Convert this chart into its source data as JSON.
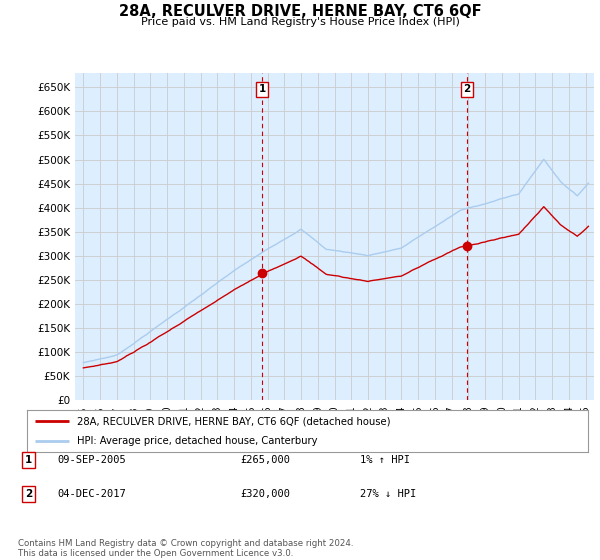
{
  "title": "28A, RECULVER DRIVE, HERNE BAY, CT6 6QF",
  "subtitle": "Price paid vs. HM Land Registry's House Price Index (HPI)",
  "ylabel_ticks": [
    "£0",
    "£50K",
    "£100K",
    "£150K",
    "£200K",
    "£250K",
    "£300K",
    "£350K",
    "£400K",
    "£450K",
    "£500K",
    "£550K",
    "£600K",
    "£650K"
  ],
  "ytick_values": [
    0,
    50000,
    100000,
    150000,
    200000,
    250000,
    300000,
    350000,
    400000,
    450000,
    500000,
    550000,
    600000,
    650000
  ],
  "ylim": [
    0,
    680000
  ],
  "xlim_start": 1994.5,
  "xlim_end": 2025.5,
  "hpi_color": "#aaccee",
  "price_color": "#cc0000",
  "marker_color": "#cc0000",
  "grid_color": "#cccccc",
  "chart_bg": "#ddeeff",
  "background_color": "#ffffff",
  "sale1_x": 2005.69,
  "sale1_y": 265000,
  "sale1_label": "1",
  "sale2_x": 2017.92,
  "sale2_y": 320000,
  "sale2_label": "2",
  "legend_line1": "28A, RECULVER DRIVE, HERNE BAY, CT6 6QF (detached house)",
  "legend_line2": "HPI: Average price, detached house, Canterbury",
  "table_row1": [
    "1",
    "09-SEP-2005",
    "£265,000",
    "1% ↑ HPI"
  ],
  "table_row2": [
    "2",
    "04-DEC-2017",
    "£320,000",
    "27% ↓ HPI"
  ],
  "footnote": "Contains HM Land Registry data © Crown copyright and database right 2024.\nThis data is licensed under the Open Government Licence v3.0.",
  "vline_color": "#cc0000",
  "badge_edge_color": "#cc0000"
}
